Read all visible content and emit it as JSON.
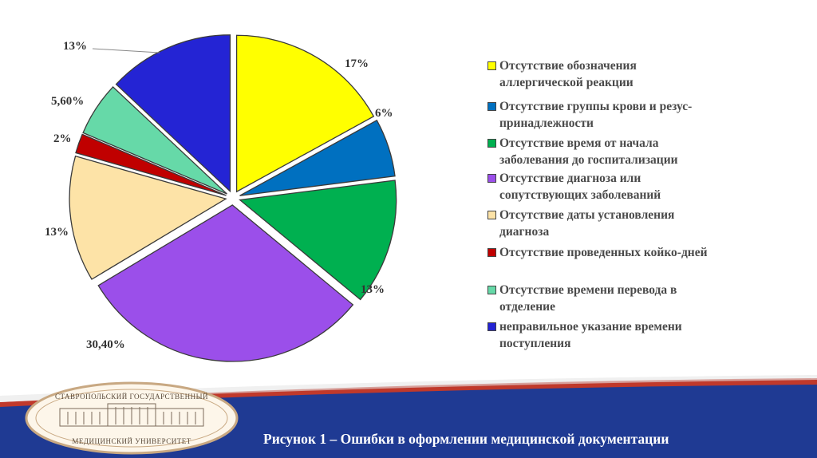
{
  "chart_data": {
    "type": "pie",
    "title": "",
    "slices": [
      {
        "label": "Отсутствие обозначения аллергической реакции",
        "value": 17,
        "display": "17%",
        "color": "#FFFF00"
      },
      {
        "label": "Отсутствие группы крови и резус-принадлежности",
        "value": 6,
        "display": "6%",
        "color": "#0070C0"
      },
      {
        "label": "Отсутствие время от начала заболевания до госпитализации",
        "value": 13,
        "display": "13%",
        "color": "#00B050"
      },
      {
        "label": "Отсутствие диагноза или сопутствующих заболеваний",
        "value": 30.4,
        "display": "30,40%",
        "color": "#9B4FEA"
      },
      {
        "label": "Отсутствие даты установления диагноза",
        "value": 13,
        "display": "13%",
        "color": "#FDE3A7"
      },
      {
        "label": "Отсутствие проведенных койко-дней",
        "value": 2,
        "display": "2%",
        "color": "#C00000"
      },
      {
        "label": "Отсутствие  времени перевода в отделение",
        "value": 5.6,
        "display": "5,60%",
        "color": "#66D9A8"
      },
      {
        "label": "неправильное указание времени поступления",
        "value": 13,
        "display": "13%",
        "color": "#2424D4"
      }
    ],
    "legend": {
      "placement": "right",
      "entries": [
        {
          "lines": [
            "Отсутствие обозначения",
            "аллергической реакции"
          ],
          "color": "#FFFF00"
        },
        {
          "lines": [
            "Отсутствие группы крови и резус-",
            "принадлежности"
          ],
          "color": "#0070C0"
        },
        {
          "lines": [
            "Отсутствие время от начала",
            "заболевания до госпитализации"
          ],
          "color": "#00B050"
        },
        {
          "lines": [
            "Отсутствие диагноза или",
            "сопутствующих заболеваний"
          ],
          "color": "#9B4FEA"
        },
        {
          "lines": [
            "Отсутствие даты установления",
            "диагноза"
          ],
          "color": "#FDE3A7"
        },
        {
          "lines": [
            "Отсутствие проведенных койко-дней"
          ],
          "color": "#C00000"
        },
        {
          "lines": [
            "Отсутствие  времени перевода в",
            "отделение"
          ],
          "color": "#66D9A8"
        },
        {
          "lines": [
            "неправильное указание времени",
            "поступления"
          ],
          "color": "#2424D4"
        }
      ]
    }
  },
  "caption": "Рисунок 1 – Ошибки в оформлении медицинской документации",
  "logo": {
    "top_text": "СТАВРОПОЛЬСКИЙ ГОСУДАРСТВЕННЫЙ",
    "bottom_text": "МЕДИЦИНСКИЙ УНИВЕРСИТЕТ"
  },
  "colors": {
    "footer_red": "#C0392B",
    "footer_blue": "#1F3A93",
    "logo_ring": "#C8A882"
  }
}
